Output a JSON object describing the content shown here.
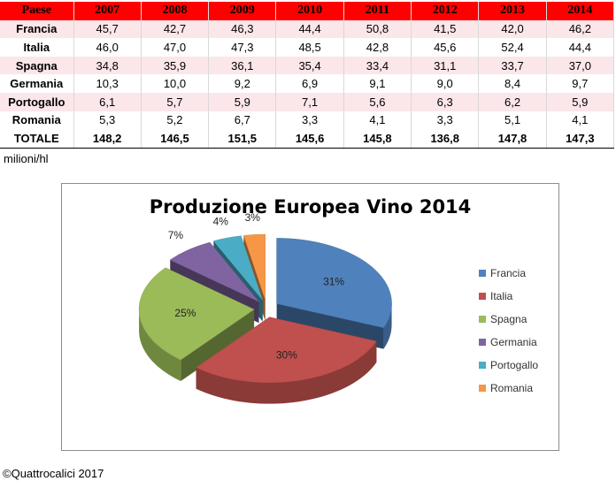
{
  "table": {
    "headers": [
      "Paese",
      "2007",
      "2008",
      "2009",
      "2010",
      "2011",
      "2012",
      "2013",
      "2014"
    ],
    "rows": [
      [
        "Francia",
        "45,7",
        "42,7",
        "46,3",
        "44,4",
        "50,8",
        "41,5",
        "42,0",
        "46,2"
      ],
      [
        "Italia",
        "46,0",
        "47,0",
        "47,3",
        "48,5",
        "42,8",
        "45,6",
        "52,4",
        "44,4"
      ],
      [
        "Spagna",
        "34,8",
        "35,9",
        "36,1",
        "35,4",
        "33,4",
        "31,1",
        "33,7",
        "37,0"
      ],
      [
        "Germania",
        "10,3",
        "10,0",
        "9,2",
        "6,9",
        "9,1",
        "9,0",
        "8,4",
        "9,7"
      ],
      [
        "Portogallo",
        "6,1",
        "5,7",
        "5,9",
        "7,1",
        "5,6",
        "6,3",
        "6,2",
        "5,9"
      ],
      [
        "Romania",
        "5,3",
        "5,2",
        "6,7",
        "3,3",
        "4,1",
        "3,3",
        "5,1",
        "4,1"
      ],
      [
        "TOTALE",
        "148,2",
        "146,5",
        "151,5",
        "145,6",
        "145,8",
        "136,8",
        "147,8",
        "147,3"
      ]
    ],
    "unit": "milioni/hl"
  },
  "chart_data": {
    "type": "pie",
    "title": "Produzione Europea Vino 2014",
    "categories": [
      "Francia",
      "Italia",
      "Spagna",
      "Germania",
      "Portogallo",
      "Romania"
    ],
    "values": [
      31,
      30,
      25,
      7,
      4,
      3
    ],
    "labels": [
      "31%",
      "30%",
      "25%",
      "7%",
      "4%",
      "3%"
    ],
    "colors": [
      "#4f81bd",
      "#c0504d",
      "#9bbb59",
      "#8064a2",
      "#4bacc6",
      "#f79646"
    ],
    "exploded": true,
    "style": "3d",
    "legend": "right"
  },
  "footer": {
    "copyright": "©Quattrocalici 2017"
  }
}
